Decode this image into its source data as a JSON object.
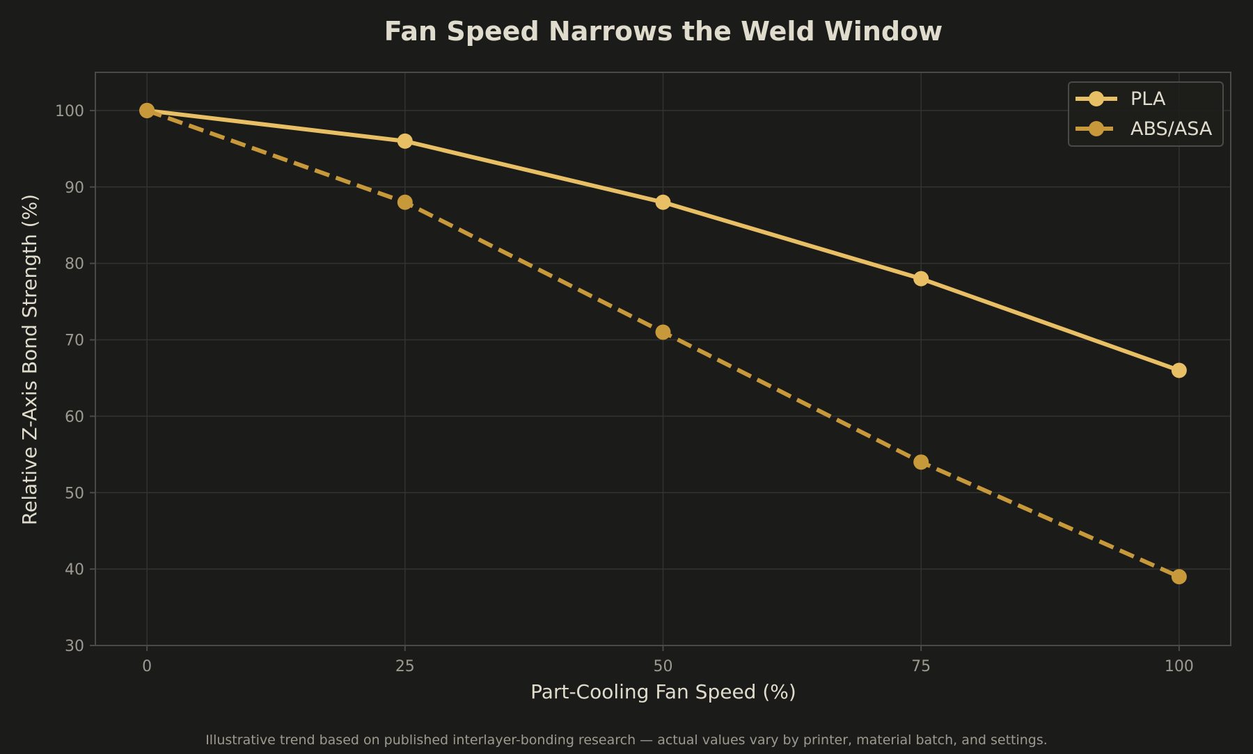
{
  "colors": {
    "background": "#1b1b19",
    "grid": "#333331",
    "frame": "#4a4a47",
    "text": "#e0dccd",
    "tick_text": "#9d9a90",
    "footnote_text": "#9d9a90",
    "legend_bg": "#1d1d1b",
    "legend_border": "#4a4a47"
  },
  "chart_data": {
    "type": "line",
    "title": "Fan Speed Narrows the Weld Window",
    "xlabel": "Part-Cooling Fan Speed (%)",
    "ylabel": "Relative Z-Axis Bond Strength (%)",
    "x": [
      0,
      25,
      50,
      75,
      100
    ],
    "xticks": [
      0,
      25,
      50,
      75,
      100
    ],
    "yticks": [
      30,
      40,
      50,
      60,
      70,
      80,
      90,
      100
    ],
    "xlim": [
      -5,
      105
    ],
    "ylim": [
      30,
      105
    ],
    "grid": true,
    "legend_position": "top-right",
    "series": [
      {
        "name": "PLA",
        "values": [
          100,
          96,
          88,
          78,
          66
        ],
        "color": "#e8bf64",
        "line_style": "solid",
        "marker": "circle"
      },
      {
        "name": "ABS/ASA",
        "values": [
          100,
          88,
          71,
          54,
          39
        ],
        "color": "#c8993a",
        "line_style": "dashed",
        "marker": "circle"
      }
    ]
  },
  "footnote": "Illustrative trend based on published interlayer-bonding research — actual values vary by printer, material batch, and settings."
}
